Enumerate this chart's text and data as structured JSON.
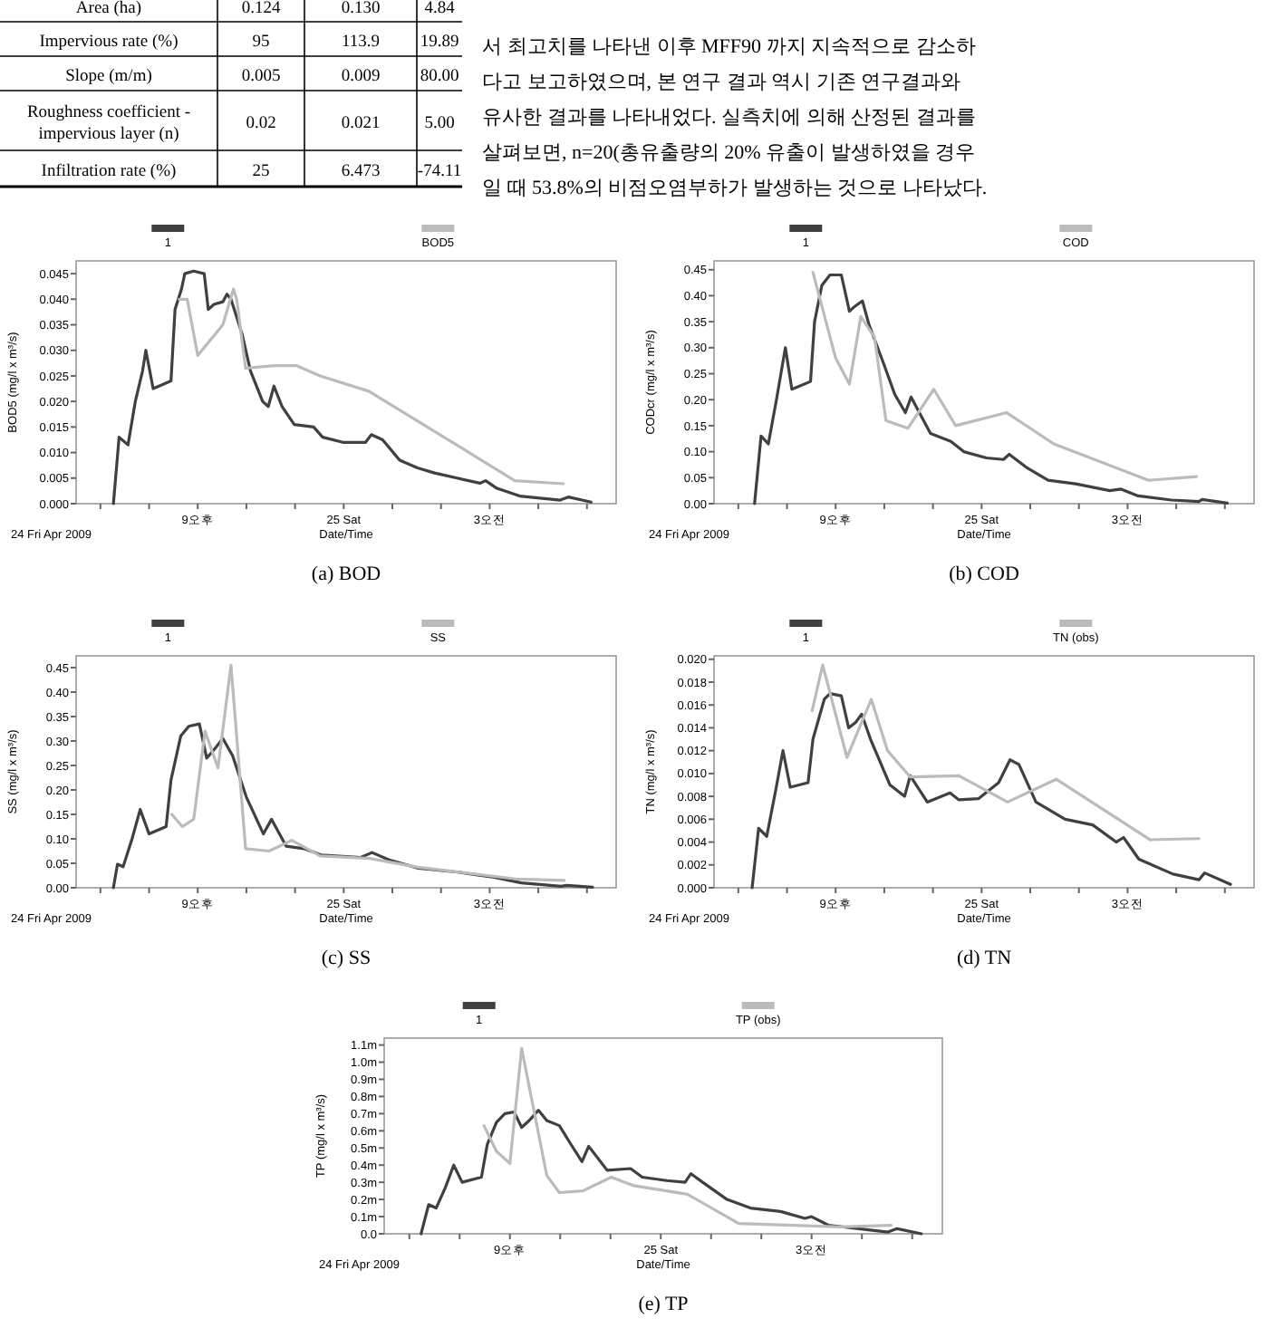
{
  "chart_data": [
    {
      "type": "other",
      "annotations": [
        "Area (ha)",
        "0.124",
        "0.130",
        "4.84",
        "Impervious rate (%)",
        "95",
        "113.9",
        "19.89",
        "Slope (m/m)",
        "0.005",
        "0.009",
        "80.00",
        "Roughness coefficient - impervious layer (n)",
        "0.02",
        "0.021",
        "5.00",
        "Infiltration rate (%)",
        "25",
        "6.473",
        "-74.11"
      ]
    },
    {
      "type": "other",
      "annotations": [
        "서 최고치를 나타낸 이후 MFF90 까지 지속적으로 감소하",
        "다고 보고하였으며, 본 연구 결과 역시 기존 연구결과와",
        "유사한 결과를 나타내었다. 실측치에 의해 산정된 결과를",
        "살펴보면, n=20(총유출량의 20% 유출이 발생하였을 경우",
        "일 때 53.8%의 비점오염부하가 발생하는 것으로 나타났다."
      ]
    },
    {
      "type": "line",
      "title": "(a)  BOD",
      "xlabel": "Date/Time",
      "ylabel": "BOD5 (mg/l x m³/s)",
      "annotations": [
        "24 Fri Apr 2009"
      ],
      "legend": "top",
      "xlim": [
        "2009-04-24T18:30",
        "2009-04-25T05:36"
      ],
      "xticks": [
        {
          "value": "2009-04-24T19:00",
          "label": null
        },
        {
          "value": "2009-04-24T20:00",
          "label": null
        },
        {
          "value": "2009-04-24T21:00",
          "label": "9오후"
        },
        {
          "value": "2009-04-24T22:00",
          "label": null
        },
        {
          "value": "2009-04-24T23:00",
          "label": null
        },
        {
          "value": "2009-04-25T00:00",
          "label": "25 Sat"
        },
        {
          "value": "2009-04-25T01:00",
          "label": null
        },
        {
          "value": "2009-04-25T02:00",
          "label": null
        },
        {
          "value": "2009-04-25T03:00",
          "label": "3오전"
        },
        {
          "value": "2009-04-25T04:00",
          "label": null
        },
        {
          "value": "2009-04-25T05:00",
          "label": null
        }
      ],
      "ylim": [
        0,
        0.0475
      ],
      "yticks": [
        {
          "value": 0,
          "label": "0.000"
        },
        {
          "value": 0.005,
          "label": "0.005"
        },
        {
          "value": 0.01,
          "label": "0.010"
        },
        {
          "value": 0.015,
          "label": "0.015"
        },
        {
          "value": 0.02,
          "label": "0.020"
        },
        {
          "value": 0.025,
          "label": "0.025"
        },
        {
          "value": 0.03,
          "label": "0.030"
        },
        {
          "value": 0.035,
          "label": "0.035"
        },
        {
          "value": 0.04,
          "label": "0.040"
        },
        {
          "value": 0.045,
          "label": "0.045"
        }
      ],
      "series": [
        {
          "name": "1",
          "color": "#404040",
          "x": [
            "2009-04-24T19:16",
            "2009-04-24T19:23",
            "2009-04-24T19:34",
            "2009-04-24T19:43",
            "2009-04-24T19:52",
            "2009-04-24T19:56",
            "2009-04-24T20:05",
            "2009-04-24T20:27",
            "2009-04-24T20:32",
            "2009-04-24T20:40",
            "2009-04-24T20:44",
            "2009-04-24T20:55",
            "2009-04-24T21:08",
            "2009-04-24T21:13",
            "2009-04-24T21:20",
            "2009-04-24T21:31",
            "2009-04-24T21:36",
            "2009-04-24T21:41",
            "2009-04-24T21:55",
            "2009-04-24T22:05",
            "2009-04-24T22:20",
            "2009-04-24T22:27",
            "2009-04-24T22:34",
            "2009-04-24T22:44",
            "2009-04-24T22:59",
            "2009-04-24T23:23",
            "2009-04-24T23:34",
            "2009-04-24T23:59",
            "2009-04-25T00:27",
            "2009-04-25T00:34",
            "2009-04-25T00:48",
            "2009-04-25T01:09",
            "2009-04-25T01:31",
            "2009-04-25T01:52",
            "2009-04-25T02:20",
            "2009-04-25T02:48",
            "2009-04-25T02:55",
            "2009-04-25T03:09",
            "2009-04-25T03:37",
            "2009-04-25T04:27",
            "2009-04-25T04:37",
            "2009-04-25T05:05"
          ],
          "values": [
            0,
            0.013,
            0.0115,
            0.02,
            0.026,
            0.03,
            0.0225,
            0.024,
            0.038,
            0.042,
            0.045,
            0.0455,
            0.045,
            0.038,
            0.039,
            0.0395,
            0.041,
            0.04,
            0.033,
            0.026,
            0.02,
            0.019,
            0.023,
            0.019,
            0.0155,
            0.015,
            0.013,
            0.012,
            0.012,
            0.0135,
            0.0125,
            0.0085,
            0.007,
            0.006,
            0.005,
            0.004,
            0.0045,
            0.003,
            0.0015,
            0.0007,
            0.0013,
            0.0003
          ]
        },
        {
          "name": "BOD5",
          "color": "#bbbbbb",
          "x": [
            "2009-04-24T20:37",
            "2009-04-24T20:47",
            "2009-04-24T21:00",
            "2009-04-24T21:31",
            "2009-04-24T21:44",
            "2009-04-24T21:48",
            "2009-04-24T21:59",
            "2009-04-24T22:34",
            "2009-04-24T23:02",
            "2009-04-24T23:31",
            "2009-04-25T00:31",
            "2009-04-25T03:31",
            "2009-04-25T04:31"
          ],
          "values": [
            0.04,
            0.04,
            0.029,
            0.035,
            0.042,
            0.04,
            0.0265,
            0.027,
            0.027,
            0.025,
            0.022,
            0.0045,
            0.0039
          ]
        }
      ]
    },
    {
      "type": "line",
      "title": "(b)  COD",
      "xlabel": "Date/Time",
      "ylabel": "CODcr (mg/l x m³/s)",
      "annotations": [
        "24 Fri Apr 2009"
      ],
      "legend": "top",
      "xlim": [
        "2009-04-24T18:30",
        "2009-04-25T05:36"
      ],
      "xticks": [
        {
          "value": "2009-04-24T19:00",
          "label": null
        },
        {
          "value": "2009-04-24T20:00",
          "label": null
        },
        {
          "value": "2009-04-24T21:00",
          "label": "9오후"
        },
        {
          "value": "2009-04-24T22:00",
          "label": null
        },
        {
          "value": "2009-04-24T23:00",
          "label": null
        },
        {
          "value": "2009-04-25T00:00",
          "label": "25 Sat"
        },
        {
          "value": "2009-04-25T01:00",
          "label": null
        },
        {
          "value": "2009-04-25T02:00",
          "label": null
        },
        {
          "value": "2009-04-25T03:00",
          "label": "3오전"
        },
        {
          "value": "2009-04-25T04:00",
          "label": null
        },
        {
          "value": "2009-04-25T05:00",
          "label": null
        }
      ],
      "ylim": [
        0,
        0.467
      ],
      "yticks": [
        {
          "value": 0,
          "label": "0.00"
        },
        {
          "value": 0.05,
          "label": "0.05"
        },
        {
          "value": 0.1,
          "label": "0.10"
        },
        {
          "value": 0.15,
          "label": "0.15"
        },
        {
          "value": 0.2,
          "label": "0.20"
        },
        {
          "value": 0.25,
          "label": "0.25"
        },
        {
          "value": 0.3,
          "label": "0.30"
        },
        {
          "value": 0.35,
          "label": "0.35"
        },
        {
          "value": 0.4,
          "label": "0.40"
        },
        {
          "value": 0.45,
          "label": "0.45"
        }
      ],
      "series": [
        {
          "name": "1",
          "color": "#404040",
          "x": [
            "2009-04-24T19:20",
            "2009-04-24T19:28",
            "2009-04-24T19:37",
            "2009-04-24T19:47",
            "2009-04-24T19:58",
            "2009-04-24T20:06",
            "2009-04-24T20:29",
            "2009-04-24T20:34",
            "2009-04-24T20:43",
            "2009-04-24T20:53",
            "2009-04-24T21:07",
            "2009-04-24T21:17",
            "2009-04-24T21:24",
            "2009-04-24T21:33",
            "2009-04-24T21:41",
            "2009-04-24T21:59",
            "2009-04-24T22:13",
            "2009-04-24T22:26",
            "2009-04-24T22:33",
            "2009-04-24T22:57",
            "2009-04-24T23:22",
            "2009-04-24T23:38",
            "2009-04-25T00:06",
            "2009-04-25T00:27",
            "2009-04-25T00:34",
            "2009-04-25T00:55",
            "2009-04-25T01:22",
            "2009-04-25T01:56",
            "2009-04-25T02:38",
            "2009-04-25T02:52",
            "2009-04-25T03:13",
            "2009-04-25T03:54",
            "2009-04-25T04:28",
            "2009-04-25T04:32",
            "2009-04-25T05:03"
          ],
          "values": [
            0,
            0.13,
            0.115,
            0.2,
            0.3,
            0.22,
            0.235,
            0.35,
            0.42,
            0.44,
            0.44,
            0.37,
            0.38,
            0.39,
            0.345,
            0.27,
            0.21,
            0.175,
            0.205,
            0.135,
            0.12,
            0.1,
            0.088,
            0.085,
            0.095,
            0.07,
            0.045,
            0.038,
            0.025,
            0.028,
            0.015,
            0.007,
            0.004,
            0.008,
            0.001
          ]
        },
        {
          "name": "COD",
          "color": "#bbbbbb",
          "x": [
            "2009-04-24T20:32",
            "2009-04-24T21:00",
            "2009-04-24T21:17",
            "2009-04-24T21:31",
            "2009-04-24T21:48",
            "2009-04-24T22:02",
            "2009-04-24T22:29",
            "2009-04-24T23:01",
            "2009-04-24T23:28",
            "2009-04-25T00:31",
            "2009-04-25T01:29",
            "2009-04-25T03:26",
            "2009-04-25T04:25"
          ],
          "values": [
            0.445,
            0.28,
            0.23,
            0.36,
            0.32,
            0.16,
            0.145,
            0.22,
            0.15,
            0.175,
            0.115,
            0.045,
            0.052
          ]
        }
      ]
    },
    {
      "type": "line",
      "title": "(c)  SS",
      "xlabel": "Date/Time",
      "ylabel": "SS (mg/l x m³/s)",
      "annotations": [
        "24 Fri Apr 2009"
      ],
      "legend": "top",
      "xlim": [
        "2009-04-24T18:30",
        "2009-04-25T05:36"
      ],
      "xticks": [
        {
          "value": "2009-04-24T19:00",
          "label": null
        },
        {
          "value": "2009-04-24T20:00",
          "label": null
        },
        {
          "value": "2009-04-24T21:00",
          "label": "9오후"
        },
        {
          "value": "2009-04-24T22:00",
          "label": null
        },
        {
          "value": "2009-04-24T23:00",
          "label": null
        },
        {
          "value": "2009-04-25T00:00",
          "label": "25 Sat"
        },
        {
          "value": "2009-04-25T01:00",
          "label": null
        },
        {
          "value": "2009-04-25T02:00",
          "label": null
        },
        {
          "value": "2009-04-25T03:00",
          "label": "3오전"
        },
        {
          "value": "2009-04-25T04:00",
          "label": null
        },
        {
          "value": "2009-04-25T05:00",
          "label": null
        }
      ],
      "ylim": [
        0,
        0.474
      ],
      "yticks": [
        {
          "value": 0,
          "label": "0.00"
        },
        {
          "value": 0.05,
          "label": "0.05"
        },
        {
          "value": 0.1,
          "label": "0.10"
        },
        {
          "value": 0.15,
          "label": "0.15"
        },
        {
          "value": 0.2,
          "label": "0.20"
        },
        {
          "value": 0.25,
          "label": "0.25"
        },
        {
          "value": 0.3,
          "label": "0.30"
        },
        {
          "value": 0.35,
          "label": "0.35"
        },
        {
          "value": 0.4,
          "label": "0.40"
        },
        {
          "value": 0.45,
          "label": "0.45"
        }
      ],
      "series": [
        {
          "name": "1",
          "color": "#404040",
          "x": [
            "2009-04-24T19:16",
            "2009-04-24T19:21",
            "2009-04-24T19:28",
            "2009-04-24T19:39",
            "2009-04-24T19:49",
            "2009-04-24T20:00",
            "2009-04-24T20:21",
            "2009-04-24T20:27",
            "2009-04-24T20:39",
            "2009-04-24T20:49",
            "2009-04-24T21:02",
            "2009-04-24T21:11",
            "2009-04-24T21:19",
            "2009-04-24T21:31",
            "2009-04-24T21:43",
            "2009-04-24T22:00",
            "2009-04-24T22:21",
            "2009-04-24T22:31",
            "2009-04-24T22:49",
            "2009-04-24T23:11",
            "2009-04-24T23:32",
            "2009-04-25T00:21",
            "2009-04-25T00:35",
            "2009-04-25T00:56",
            "2009-04-25T01:32",
            "2009-04-25T02:21",
            "2009-04-25T02:49",
            "2009-04-25T03:04",
            "2009-04-25T03:39",
            "2009-04-25T04:28",
            "2009-04-25T04:35",
            "2009-04-25T05:07"
          ],
          "values": [
            0,
            0.048,
            0.043,
            0.1,
            0.16,
            0.11,
            0.125,
            0.22,
            0.31,
            0.33,
            0.335,
            0.265,
            0.28,
            0.305,
            0.27,
            0.185,
            0.11,
            0.14,
            0.085,
            0.08,
            0.067,
            0.062,
            0.072,
            0.057,
            0.04,
            0.032,
            0.025,
            0.022,
            0.01,
            0.003,
            0.005,
            0.001
          ]
        },
        {
          "name": "SS",
          "color": "#bbbbbb",
          "x": [
            "2009-04-24T20:28",
            "2009-04-24T20:41",
            "2009-04-24T20:55",
            "2009-04-24T21:09",
            "2009-04-24T21:25",
            "2009-04-24T21:41",
            "2009-04-24T21:59",
            "2009-04-24T22:28",
            "2009-04-24T22:56",
            "2009-04-24T23:31",
            "2009-04-25T00:32",
            "2009-04-25T01:32",
            "2009-04-25T03:32",
            "2009-04-25T04:32"
          ],
          "values": [
            0.15,
            0.125,
            0.14,
            0.32,
            0.245,
            0.455,
            0.08,
            0.075,
            0.097,
            0.065,
            0.06,
            0.042,
            0.018,
            0.015
          ]
        }
      ]
    },
    {
      "type": "line",
      "title": "(d)  TN",
      "xlabel": "Date/Time",
      "ylabel": "TN (mg/l x m³/s)",
      "annotations": [
        "24 Fri Apr 2009"
      ],
      "legend": "top",
      "xlim": [
        "2009-04-24T18:30",
        "2009-04-25T05:36"
      ],
      "xticks": [
        {
          "value": "2009-04-24T19:00",
          "label": null
        },
        {
          "value": "2009-04-24T20:00",
          "label": null
        },
        {
          "value": "2009-04-24T21:00",
          "label": "9오후"
        },
        {
          "value": "2009-04-24T22:00",
          "label": null
        },
        {
          "value": "2009-04-24T23:00",
          "label": null
        },
        {
          "value": "2009-04-25T00:00",
          "label": "25 Sat"
        },
        {
          "value": "2009-04-25T01:00",
          "label": null
        },
        {
          "value": "2009-04-25T02:00",
          "label": null
        },
        {
          "value": "2009-04-25T03:00",
          "label": "3오전"
        },
        {
          "value": "2009-04-25T04:00",
          "label": null
        },
        {
          "value": "2009-04-25T05:00",
          "label": null
        }
      ],
      "ylim": [
        0,
        0.0203
      ],
      "yticks": [
        {
          "value": 0,
          "label": "0.000"
        },
        {
          "value": 0.002,
          "label": "0.002"
        },
        {
          "value": 0.004,
          "label": "0.004"
        },
        {
          "value": 0.006,
          "label": "0.006"
        },
        {
          "value": 0.008,
          "label": "0.008"
        },
        {
          "value": 0.01,
          "label": "0.010"
        },
        {
          "value": 0.012,
          "label": "0.012"
        },
        {
          "value": 0.014,
          "label": "0.014"
        },
        {
          "value": 0.016,
          "label": "0.016"
        },
        {
          "value": 0.018,
          "label": "0.018"
        },
        {
          "value": 0.02,
          "label": "0.020"
        }
      ],
      "series": [
        {
          "name": "1",
          "color": "#404040",
          "x": [
            "2009-04-24T19:17",
            "2009-04-24T19:25",
            "2009-04-24T19:35",
            "2009-04-24T19:46",
            "2009-04-24T19:55",
            "2009-04-24T20:04",
            "2009-04-24T20:26",
            "2009-04-24T20:32",
            "2009-04-24T20:46",
            "2009-04-24T20:53",
            "2009-04-24T21:07",
            "2009-04-24T21:16",
            "2009-04-24T21:25",
            "2009-04-24T21:32",
            "2009-04-24T21:43",
            "2009-04-24T22:07",
            "2009-04-24T22:25",
            "2009-04-24T22:32",
            "2009-04-24T22:53",
            "2009-04-24T23:21",
            "2009-04-24T23:32",
            "2009-04-24T23:56",
            "2009-04-25T00:21",
            "2009-04-25T00:35",
            "2009-04-25T00:46",
            "2009-04-25T01:07",
            "2009-04-25T01:43",
            "2009-04-25T02:17",
            "2009-04-25T02:46",
            "2009-04-25T02:55",
            "2009-04-25T03:14",
            "2009-04-25T03:56",
            "2009-04-25T04:28",
            "2009-04-25T04:35",
            "2009-04-25T05:07"
          ],
          "values": [
            0,
            0.0052,
            0.0045,
            0.0085,
            0.012,
            0.0088,
            0.0092,
            0.013,
            0.0165,
            0.017,
            0.0168,
            0.014,
            0.0145,
            0.0152,
            0.013,
            0.009,
            0.008,
            0.0098,
            0.0075,
            0.0083,
            0.0077,
            0.0078,
            0.0092,
            0.0112,
            0.0108,
            0.0075,
            0.006,
            0.0055,
            0.004,
            0.0044,
            0.0025,
            0.0012,
            0.0007,
            0.0013,
            0.0003
          ]
        },
        {
          "name": "TN (obs)",
          "color": "#bbbbbb",
          "x": [
            "2009-04-24T20:31",
            "2009-04-24T20:44",
            "2009-04-24T21:14",
            "2009-04-24T21:44",
            "2009-04-24T22:04",
            "2009-04-24T22:32",
            "2009-04-24T23:32",
            "2009-04-25T00:32",
            "2009-04-25T01:32",
            "2009-04-25T03:28",
            "2009-04-25T04:28"
          ],
          "values": [
            0.0155,
            0.0195,
            0.0114,
            0.0165,
            0.012,
            0.0097,
            0.0098,
            0.0075,
            0.0095,
            0.0042,
            0.0043
          ]
        }
      ]
    },
    {
      "type": "line",
      "title": "(e)  TP",
      "xlabel": "Date/Time",
      "ylabel": "TP (mg/l x m³/s)",
      "annotations": [
        "24 Fri Apr 2009"
      ],
      "legend": "top",
      "xlim": [
        "2009-04-24T18:30",
        "2009-04-25T05:36"
      ],
      "xticks": [
        {
          "value": "2009-04-24T19:00",
          "label": null
        },
        {
          "value": "2009-04-24T20:00",
          "label": null
        },
        {
          "value": "2009-04-24T21:00",
          "label": "9오후"
        },
        {
          "value": "2009-04-24T22:00",
          "label": null
        },
        {
          "value": "2009-04-24T23:00",
          "label": null
        },
        {
          "value": "2009-04-25T00:00",
          "label": "25 Sat"
        },
        {
          "value": "2009-04-25T01:00",
          "label": null
        },
        {
          "value": "2009-04-25T02:00",
          "label": null
        },
        {
          "value": "2009-04-25T03:00",
          "label": "3오전"
        },
        {
          "value": "2009-04-25T04:00",
          "label": null
        },
        {
          "value": "2009-04-25T05:00",
          "label": null
        }
      ],
      "ylim": [
        0,
        1.14
      ],
      "yticks": [
        {
          "value": 0,
          "label": "0.0"
        },
        {
          "value": 0.1,
          "label": "0.1m"
        },
        {
          "value": 0.2,
          "label": "0.2m"
        },
        {
          "value": 0.3,
          "label": "0.3m"
        },
        {
          "value": 0.4,
          "label": "0.4m"
        },
        {
          "value": 0.5,
          "label": "0.5m"
        },
        {
          "value": 0.6,
          "label": "0.6m"
        },
        {
          "value": 0.7,
          "label": "0.7m"
        },
        {
          "value": 0.8,
          "label": "0.8m"
        },
        {
          "value": 0.9,
          "label": "0.9m"
        },
        {
          "value": 1.0,
          "label": "1.0m"
        },
        {
          "value": 1.1,
          "label": "1.1m"
        }
      ],
      "series": [
        {
          "name": "1",
          "color": "#404040",
          "x": [
            "2009-04-24T19:14",
            "2009-04-24T19:23",
            "2009-04-24T19:32",
            "2009-04-24T19:43",
            "2009-04-24T19:53",
            "2009-04-24T20:03",
            "2009-04-24T20:26",
            "2009-04-24T20:33",
            "2009-04-24T20:44",
            "2009-04-24T20:54",
            "2009-04-24T21:05",
            "2009-04-24T21:14",
            "2009-04-24T21:23",
            "2009-04-24T21:34",
            "2009-04-24T21:44",
            "2009-04-24T21:59",
            "2009-04-24T22:13",
            "2009-04-24T22:26",
            "2009-04-24T22:34",
            "2009-04-24T22:56",
            "2009-04-24T23:24",
            "2009-04-24T23:38",
            "2009-04-25T00:07",
            "2009-04-25T00:29",
            "2009-04-25T00:36",
            "2009-04-25T00:50",
            "2009-04-25T01:19",
            "2009-04-25T01:47",
            "2009-04-25T02:23",
            "2009-04-25T02:52",
            "2009-04-25T03:00",
            "2009-04-25T03:20",
            "2009-04-25T03:56",
            "2009-04-25T04:31",
            "2009-04-25T04:42",
            "2009-04-25T05:11"
          ],
          "values": [
            0,
            0.17,
            0.15,
            0.27,
            0.4,
            0.3,
            0.33,
            0.52,
            0.65,
            0.7,
            0.71,
            0.62,
            0.66,
            0.72,
            0.66,
            0.63,
            0.52,
            0.42,
            0.51,
            0.37,
            0.38,
            0.33,
            0.31,
            0.3,
            0.35,
            0.3,
            0.2,
            0.15,
            0.13,
            0.09,
            0.1,
            0.05,
            0.03,
            0.01,
            0.03,
            0
          ]
        },
        {
          "name": "TP (obs)",
          "color": "#bbbbbb",
          "x": [
            "2009-04-24T20:29",
            "2009-04-24T20:44",
            "2009-04-24T21:00",
            "2009-04-24T21:14",
            "2009-04-24T21:44",
            "2009-04-24T21:59",
            "2009-04-24T22:27",
            "2009-04-24T23:01",
            "2009-04-24T23:28",
            "2009-04-25T00:32",
            "2009-04-25T01:33",
            "2009-04-25T03:34",
            "2009-04-25T04:35"
          ],
          "values": [
            0.63,
            0.48,
            0.41,
            1.08,
            0.34,
            0.24,
            0.25,
            0.33,
            0.28,
            0.23,
            0.06,
            0.04,
            0.05
          ]
        }
      ]
    }
  ]
}
